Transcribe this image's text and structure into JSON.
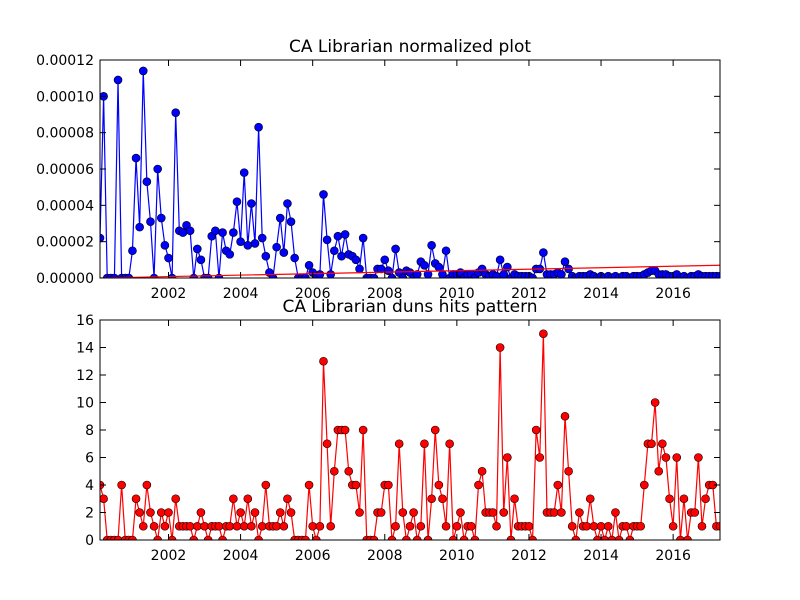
{
  "chart_data": [
    {
      "type": "line",
      "title": "CA Librarian normalized plot",
      "x": [
        2000.1,
        2000.2,
        2000.3,
        2000.4,
        2000.5,
        2000.6,
        2000.7,
        2000.8,
        2000.9,
        2001,
        2001.1,
        2001.2,
        2001.3,
        2001.4,
        2001.5,
        2001.6,
        2001.7,
        2001.8,
        2001.9,
        2002,
        2002.1,
        2002.2,
        2002.3,
        2002.4,
        2002.5,
        2002.6,
        2002.7,
        2002.8,
        2002.9,
        2003,
        2003.1,
        2003.2,
        2003.3,
        2003.4,
        2003.5,
        2003.6,
        2003.7,
        2003.8,
        2003.9,
        2004,
        2004.1,
        2004.2,
        2004.3,
        2004.4,
        2004.5,
        2004.6,
        2004.7,
        2004.8,
        2004.9,
        2005,
        2005.1,
        2005.2,
        2005.3,
        2005.4,
        2005.5,
        2005.6,
        2005.7,
        2005.8,
        2005.9,
        2006,
        2006.1,
        2006.2,
        2006.3,
        2006.4,
        2006.5,
        2006.6,
        2006.7,
        2006.8,
        2006.9,
        2007,
        2007.1,
        2007.2,
        2007.3,
        2007.4,
        2007.5,
        2007.6,
        2007.7,
        2007.8,
        2007.9,
        2008,
        2008.1,
        2008.2,
        2008.3,
        2008.4,
        2008.5,
        2008.6,
        2008.7,
        2008.8,
        2008.9,
        2009,
        2009.1,
        2009.2,
        2009.3,
        2009.4,
        2009.5,
        2009.6,
        2009.7,
        2009.8,
        2009.9,
        2010,
        2010.1,
        2010.2,
        2010.3,
        2010.4,
        2010.5,
        2010.6,
        2010.7,
        2010.8,
        2010.9,
        2011,
        2011.1,
        2011.2,
        2011.3,
        2011.4,
        2011.5,
        2011.6,
        2011.7,
        2011.8,
        2011.9,
        2012,
        2012.1,
        2012.2,
        2012.3,
        2012.4,
        2012.5,
        2012.6,
        2012.7,
        2012.8,
        2012.9,
        2013,
        2013.1,
        2013.2,
        2013.3,
        2013.4,
        2013.5,
        2013.6,
        2013.7,
        2013.8,
        2013.9,
        2014,
        2014.1,
        2014.2,
        2014.3,
        2014.4,
        2014.5,
        2014.6,
        2014.7,
        2014.8,
        2014.9,
        2015,
        2015.1,
        2015.2,
        2015.3,
        2015.4,
        2015.5,
        2015.6,
        2015.7,
        2015.8,
        2015.9,
        2016,
        2016.1,
        2016.2,
        2016.3,
        2016.4,
        2016.5,
        2016.6,
        2016.7,
        2016.8,
        2016.9,
        2017,
        2017.1,
        2017.2,
        2017.3
      ],
      "series": [
        {
          "color": "#0000ff",
          "values": [
            2.2e-05,
            0.0001,
            0,
            0,
            0,
            0.000109,
            0,
            0,
            0,
            1.5e-05,
            6.6e-05,
            2.8e-05,
            0.000114,
            5.3e-05,
            3.1e-05,
            0,
            6e-05,
            3.3e-05,
            1.8e-05,
            1.1e-05,
            0,
            9.1e-05,
            2.6e-05,
            2.5e-05,
            2.9e-05,
            2.6e-05,
            0,
            1.6e-05,
            1e-05,
            0,
            0,
            2.3e-05,
            2.6e-05,
            0,
            2.5e-05,
            1.5e-05,
            1.3e-05,
            2.5e-05,
            4.2e-05,
            2e-05,
            5.8e-05,
            1.8e-05,
            4.1e-05,
            1.9e-05,
            8.3e-05,
            2.2e-05,
            1.2e-05,
            3e-06,
            0,
            1.7e-05,
            3.3e-05,
            1.4e-05,
            4.1e-05,
            3.1e-05,
            1.1e-05,
            0,
            0,
            0,
            7e-06,
            3e-06,
            0,
            2e-06,
            4.6e-05,
            2.1e-05,
            2e-06,
            1.5e-05,
            2.3e-05,
            1.2e-05,
            2.4e-05,
            1.3e-05,
            1.2e-05,
            1e-05,
            5e-06,
            2.2e-05,
            0,
            0,
            0,
            5e-06,
            5e-06,
            1e-05,
            4e-06,
            0,
            1.6e-05,
            3e-06,
            0,
            4e-06,
            3e-06,
            0,
            2e-06,
            9e-06,
            7e-06,
            2e-06,
            1.8e-05,
            8e-06,
            6e-06,
            2e-06,
            1.5e-05,
            0,
            2e-06,
            2e-06,
            3e-06,
            0,
            2e-06,
            2e-06,
            0,
            3e-06,
            5e-06,
            2e-06,
            1e-06,
            2e-06,
            1e-06,
            1e-05,
            2e-06,
            6e-06,
            0,
            2e-06,
            1e-06,
            1e-06,
            1e-06,
            1e-06,
            0,
            5e-06,
            5e-06,
            1.4e-05,
            2e-06,
            2e-06,
            2e-06,
            3e-06,
            2e-06,
            9e-06,
            5e-06,
            1e-06,
            0,
            1e-06,
            1e-06,
            1e-06,
            2e-06,
            1e-06,
            0,
            1e-06,
            0,
            1e-06,
            0,
            1e-06,
            0,
            1e-06,
            1e-06,
            0,
            1e-06,
            1e-06,
            1e-06,
            2e-06,
            3e-06,
            4e-06,
            4e-06,
            2e-06,
            2e-06,
            2e-06,
            1e-06,
            1e-06,
            2e-06,
            0,
            1e-06,
            0,
            1e-06,
            1e-06,
            2e-06,
            1e-06,
            1e-06,
            1e-06,
            1e-06,
            1e-06,
            1e-06
          ]
        }
      ],
      "trend_line": {
        "color": "#ff0000",
        "x": [
          2000.1,
          2017.3
        ],
        "values": [
          0,
          7e-06
        ]
      },
      "xlim": [
        2000.1,
        2017.3
      ],
      "xticks": [
        2002,
        2004,
        2006,
        2008,
        2010,
        2012,
        2014,
        2016
      ],
      "ylim": [
        0,
        0.00012
      ],
      "yticks": [
        {
          "value": 0,
          "label": "0.00000"
        },
        {
          "value": 2e-05,
          "label": "0.00002"
        },
        {
          "value": 4e-05,
          "label": "0.00004"
        },
        {
          "value": 6e-05,
          "label": "0.00006"
        },
        {
          "value": 8e-05,
          "label": "0.00008"
        },
        {
          "value": 0.0001,
          "label": "0.00010"
        },
        {
          "value": 0.00012,
          "label": "0.00012"
        }
      ]
    },
    {
      "type": "line",
      "title": "CA Librarian duns hits pattern",
      "x": [
        2000.1,
        2000.2,
        2000.3,
        2000.4,
        2000.5,
        2000.6,
        2000.7,
        2000.8,
        2000.9,
        2001,
        2001.1,
        2001.2,
        2001.3,
        2001.4,
        2001.5,
        2001.6,
        2001.7,
        2001.8,
        2001.9,
        2002,
        2002.1,
        2002.2,
        2002.3,
        2002.4,
        2002.5,
        2002.6,
        2002.7,
        2002.8,
        2002.9,
        2003,
        2003.1,
        2003.2,
        2003.3,
        2003.4,
        2003.5,
        2003.6,
        2003.7,
        2003.8,
        2003.9,
        2004,
        2004.1,
        2004.2,
        2004.3,
        2004.4,
        2004.5,
        2004.6,
        2004.7,
        2004.8,
        2004.9,
        2005,
        2005.1,
        2005.2,
        2005.3,
        2005.4,
        2005.5,
        2005.6,
        2005.7,
        2005.8,
        2005.9,
        2006,
        2006.1,
        2006.2,
        2006.3,
        2006.4,
        2006.5,
        2006.6,
        2006.7,
        2006.8,
        2006.9,
        2007,
        2007.1,
        2007.2,
        2007.3,
        2007.4,
        2007.5,
        2007.6,
        2007.7,
        2007.8,
        2007.9,
        2008,
        2008.1,
        2008.2,
        2008.3,
        2008.4,
        2008.5,
        2008.6,
        2008.7,
        2008.8,
        2008.9,
        2009,
        2009.1,
        2009.2,
        2009.3,
        2009.4,
        2009.5,
        2009.6,
        2009.7,
        2009.8,
        2009.9,
        2010,
        2010.1,
        2010.2,
        2010.3,
        2010.4,
        2010.5,
        2010.6,
        2010.7,
        2010.8,
        2010.9,
        2011,
        2011.1,
        2011.2,
        2011.3,
        2011.4,
        2011.5,
        2011.6,
        2011.7,
        2011.8,
        2011.9,
        2012,
        2012.1,
        2012.2,
        2012.3,
        2012.4,
        2012.5,
        2012.6,
        2012.7,
        2012.8,
        2012.9,
        2013,
        2013.1,
        2013.2,
        2013.3,
        2013.4,
        2013.5,
        2013.6,
        2013.7,
        2013.8,
        2013.9,
        2014,
        2014.1,
        2014.2,
        2014.3,
        2014.4,
        2014.5,
        2014.6,
        2014.7,
        2014.8,
        2014.9,
        2015,
        2015.1,
        2015.2,
        2015.3,
        2015.4,
        2015.5,
        2015.6,
        2015.7,
        2015.8,
        2015.9,
        2016,
        2016.1,
        2016.2,
        2016.3,
        2016.4,
        2016.5,
        2016.6,
        2016.7,
        2016.8,
        2016.9,
        2017,
        2017.1,
        2017.2,
        2017.3
      ],
      "series": [
        {
          "color": "#ff0000",
          "values": [
            4,
            3,
            0,
            0,
            0,
            0,
            4,
            0,
            0,
            0,
            3,
            2,
            1,
            4,
            2,
            1,
            0,
            2,
            1,
            2,
            0,
            3,
            1,
            1,
            1,
            1,
            0,
            1,
            2,
            1,
            0,
            1,
            1,
            1,
            0,
            1,
            1,
            3,
            1,
            2,
            1,
            3,
            1,
            2,
            0,
            1,
            4,
            1,
            1,
            1,
            2,
            1,
            3,
            2,
            0,
            0,
            0,
            0,
            4,
            1,
            0,
            1,
            13,
            7,
            1,
            5,
            8,
            8,
            8,
            5,
            4,
            4,
            2,
            8,
            0,
            0,
            0,
            2,
            2,
            4,
            4,
            0,
            1,
            7,
            2,
            0,
            1,
            2,
            0,
            1,
            7,
            0,
            3,
            8,
            4,
            3,
            1,
            7,
            0,
            1,
            2,
            0,
            1,
            1,
            0,
            4,
            5,
            2,
            2,
            2,
            1,
            14,
            2,
            6,
            0,
            3,
            1,
            1,
            1,
            1,
            0,
            8,
            6,
            15,
            2,
            2,
            2,
            4,
            2,
            9,
            5,
            1,
            0,
            2,
            1,
            1,
            3,
            1,
            0,
            1,
            0,
            1,
            0,
            2,
            0,
            1,
            1,
            0,
            1,
            1,
            1,
            4,
            7,
            7,
            10,
            5,
            7,
            6,
            3,
            1,
            6,
            0,
            3,
            0,
            2,
            2,
            6,
            1,
            3,
            4,
            4,
            1,
            1
          ]
        }
      ],
      "xlim": [
        2000.1,
        2017.3
      ],
      "xticks": [
        2002,
        2004,
        2006,
        2008,
        2010,
        2012,
        2014,
        2016
      ],
      "ylim": [
        0,
        16
      ],
      "yticks": [
        0,
        2,
        4,
        6,
        8,
        10,
        12,
        14,
        16
      ]
    }
  ]
}
